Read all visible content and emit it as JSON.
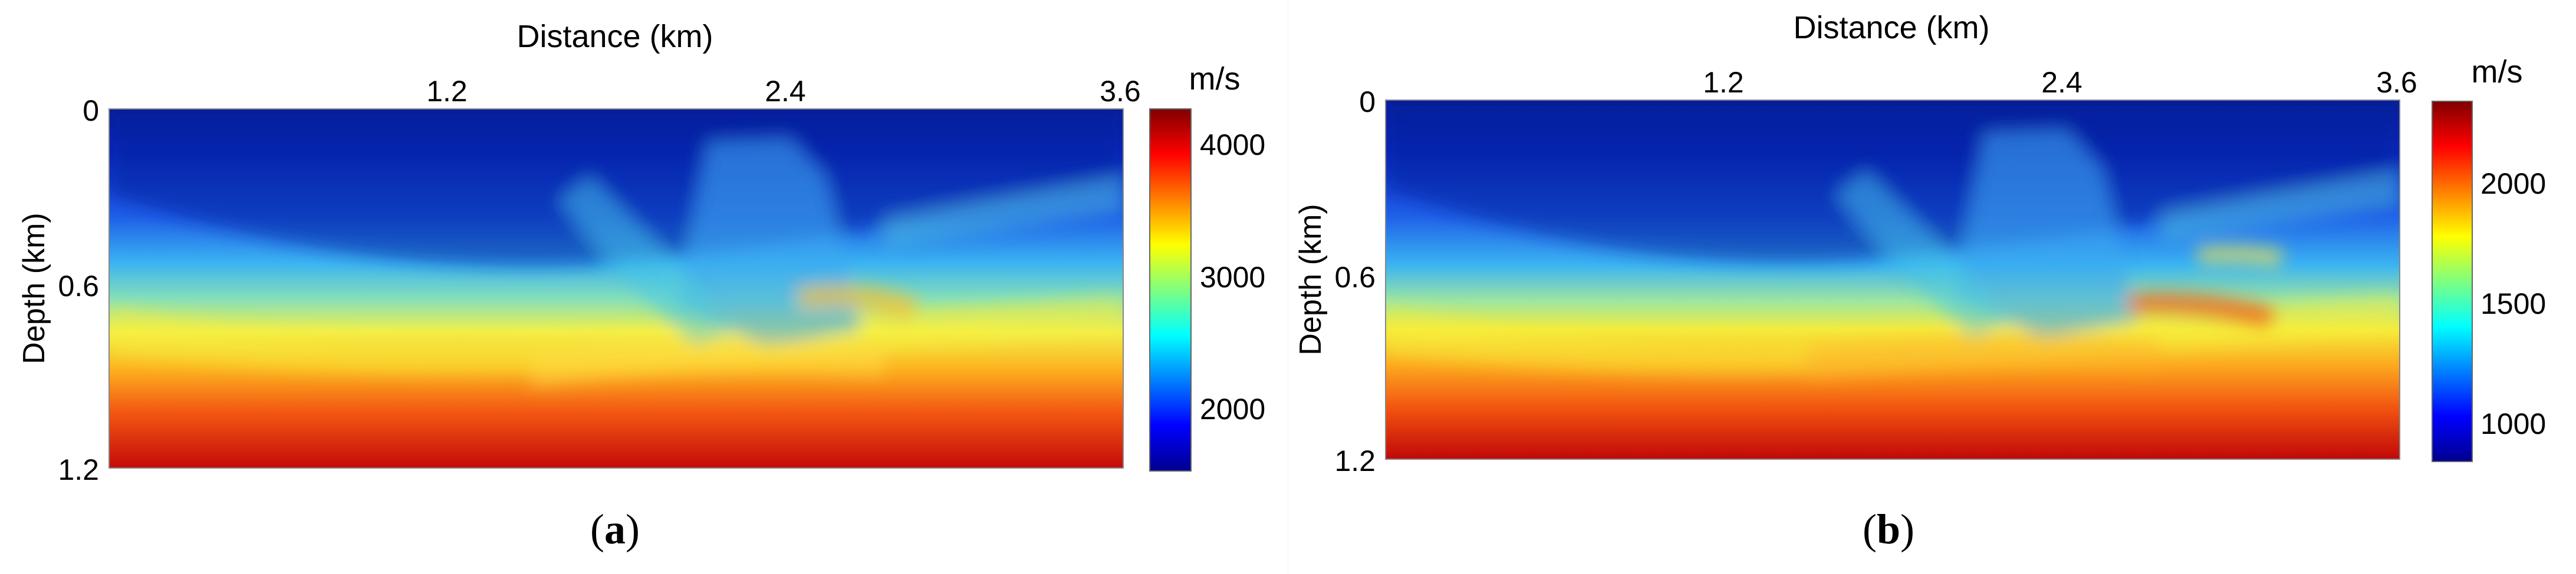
{
  "chart_data": [
    {
      "type": "heatmap",
      "panel_label": "a",
      "xlabel": "Distance (km)",
      "ylabel": "Depth (km)",
      "x_ticks": [
        "1.2",
        "2.4",
        "3.6"
      ],
      "y_ticks": [
        "0",
        "0.6",
        "1.2"
      ],
      "xlim": [
        0,
        3.6
      ],
      "ylim": [
        0,
        1.2
      ],
      "colorbar": {
        "unit": "m/s",
        "ticks": [
          "2000",
          "3000",
          "4000"
        ],
        "tick_values": [
          2000,
          3000,
          4000
        ],
        "range": [
          1500,
          4250
        ]
      },
      "colormap": "jet",
      "velocity_profile": {
        "depth_km": [
          0,
          0.15,
          0.3,
          0.45,
          0.6,
          0.75,
          0.9,
          1.05,
          1.2
        ],
        "velocity_ms": [
          1650,
          1700,
          2100,
          2700,
          3200,
          3600,
          3900,
          4100,
          4200
        ]
      }
    },
    {
      "type": "heatmap",
      "panel_label": "b",
      "xlabel": "Distance (km)",
      "ylabel": "Depth (km)",
      "x_ticks": [
        "1.2",
        "2.4",
        "3.6"
      ],
      "y_ticks": [
        "0",
        "0.6",
        "1.2"
      ],
      "xlim": [
        0,
        3.6
      ],
      "ylim": [
        0,
        1.2
      ],
      "colorbar": {
        "unit": "m/s",
        "ticks": [
          "1000",
          "1500",
          "2000"
        ],
        "tick_values": [
          1000,
          1500,
          2000
        ],
        "range": [
          900,
          2400
        ]
      },
      "colormap": "jet",
      "velocity_profile": {
        "depth_km": [
          0,
          0.15,
          0.3,
          0.45,
          0.6,
          0.75,
          0.9,
          1.05,
          1.2
        ],
        "velocity_ms": [
          1000,
          1050,
          1250,
          1500,
          1750,
          2000,
          2150,
          2250,
          2350
        ]
      }
    }
  ]
}
